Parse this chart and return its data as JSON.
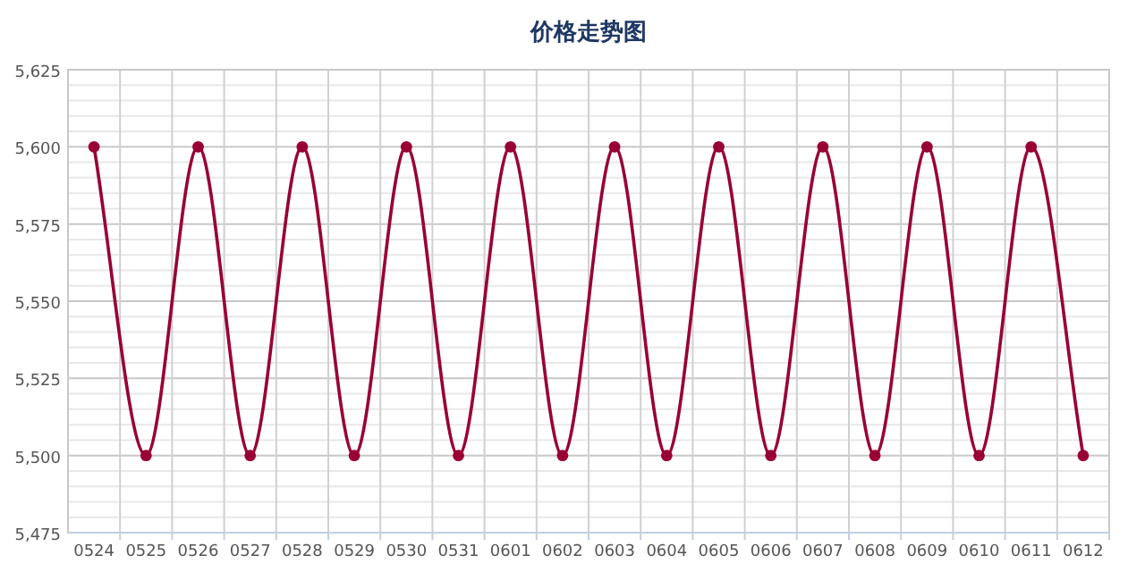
{
  "chart_data": {
    "type": "line",
    "title": "价格走势图",
    "categories": [
      "0524",
      "0525",
      "0526",
      "0527",
      "0528",
      "0529",
      "0530",
      "0531",
      "0601",
      "0602",
      "0603",
      "0604",
      "0605",
      "0606",
      "0607",
      "0608",
      "0609",
      "0610",
      "0611",
      "0612"
    ],
    "series": [
      {
        "color": "#990033",
        "values": [
          5600,
          5500,
          5600,
          5500,
          5600,
          5500,
          5600,
          5500,
          5600,
          5500,
          5600,
          5500,
          5600,
          5500,
          5600,
          5500,
          5600,
          5500,
          5600,
          5500
        ]
      }
    ],
    "ylim": [
      5475,
      5625
    ],
    "yticks": [
      {
        "value": 5475,
        "label": "5,475"
      },
      {
        "value": 5500,
        "label": "5,500"
      },
      {
        "value": 5525,
        "label": "5,525"
      },
      {
        "value": 5550,
        "label": "5,550"
      },
      {
        "value": 5575,
        "label": "5,575"
      },
      {
        "value": 5600,
        "label": "5,600"
      },
      {
        "value": 5625,
        "label": "5,625"
      }
    ],
    "grid": true,
    "marker": "circle",
    "line_style": "solid"
  }
}
